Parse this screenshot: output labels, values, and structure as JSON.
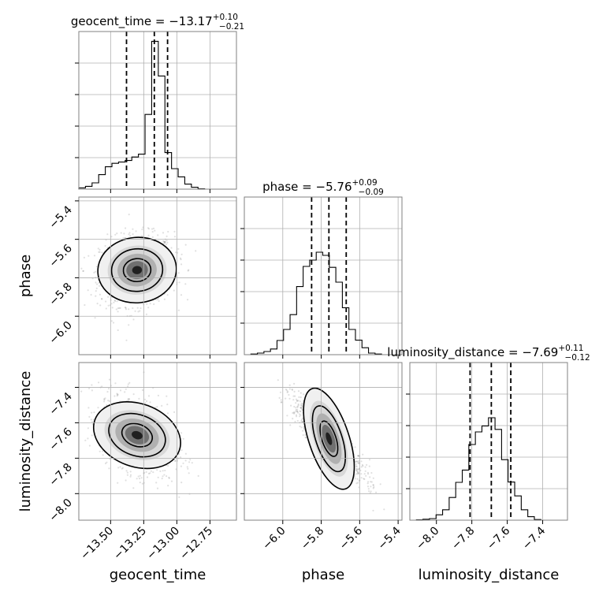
{
  "chart_data": {
    "type": "corner",
    "parameters": [
      "geocent_time",
      "phase",
      "luminosity_distance"
    ],
    "titles": [
      {
        "param": "geocent_time",
        "prefix": "geocent_time = ",
        "median": "−13.17",
        "upper": "+0.10",
        "lower": "−0.21"
      },
      {
        "param": "phase",
        "prefix": "phase = ",
        "median": "−5.76",
        "upper": "+0.09",
        "lower": "−0.09"
      },
      {
        "param": "luminosity_distance",
        "prefix": "luminosity_distance = ",
        "median": "−7.69",
        "upper": "+0.11",
        "lower": "−0.12"
      }
    ],
    "ranges": {
      "geocent_time": [
        -13.74,
        -12.55
      ],
      "phase": [
        -6.2,
        -5.38
      ],
      "luminosity_distance": [
        -8.15,
        -7.26
      ]
    },
    "ticks": {
      "geocent_time": [
        -13.5,
        -13.25,
        -13.0,
        -12.75
      ],
      "phase": [
        -6.0,
        -5.8,
        -5.6,
        -5.4
      ],
      "luminosity_distance": [
        -8.0,
        -7.8,
        -7.6,
        -7.4
      ]
    },
    "tick_labels": {
      "geocent_time": [
        "−13.50",
        "−13.25",
        "−13.00",
        "−12.75"
      ],
      "phase": [
        "−6.0",
        "−5.8",
        "−5.6",
        "−5.4"
      ],
      "luminosity_distance": [
        "−8.0",
        "−7.8",
        "−7.6",
        "−7.4"
      ]
    },
    "quantiles": {
      "geocent_time": [
        -13.38,
        -13.17,
        -13.07
      ],
      "phase": [
        -5.85,
        -5.76,
        -5.67
      ],
      "luminosity_distance": [
        -7.81,
        -7.69,
        -7.58
      ]
    },
    "histograms": {
      "geocent_time": {
        "edges": [
          -13.74,
          -13.69,
          -13.64,
          -13.59,
          -13.54,
          -13.49,
          -13.44,
          -13.39,
          -13.34,
          -13.29,
          -13.24,
          -13.19,
          -13.14,
          -13.09,
          -13.04,
          -12.99,
          -12.94,
          -12.89,
          -12.84,
          -12.79,
          -12.74,
          -12.69,
          -12.64,
          -12.59,
          -12.55
        ],
        "counts": [
          0.4,
          0.9,
          2.0,
          4.6,
          7.1,
          8.2,
          8.6,
          9.1,
          10.2,
          11.1,
          23.7,
          46.9,
          35.9,
          11.6,
          6.5,
          3.9,
          1.6,
          0.6,
          0.1,
          0,
          0,
          0,
          0,
          0
        ]
      },
      "phase": {
        "edges": [
          -6.2,
          -6.166,
          -6.132,
          -6.098,
          -6.064,
          -6.03,
          -5.996,
          -5.962,
          -5.928,
          -5.894,
          -5.86,
          -5.826,
          -5.792,
          -5.758,
          -5.724,
          -5.69,
          -5.656,
          -5.622,
          -5.588,
          -5.554,
          -5.52,
          -5.486,
          -5.452,
          -5.418,
          -5.38
        ],
        "counts": [
          0,
          0.2,
          0.5,
          1.0,
          1.8,
          4.5,
          8.0,
          12.7,
          21.6,
          28.0,
          30.0,
          32.5,
          31.5,
          27.7,
          23.0,
          14.9,
          8.0,
          4.6,
          2.2,
          0.5,
          0.2,
          0,
          0,
          0
        ]
      },
      "luminosity_distance": {
        "edges": [
          -8.15,
          -8.113,
          -8.076,
          -8.039,
          -8.002,
          -7.965,
          -7.928,
          -7.891,
          -7.854,
          -7.817,
          -7.78,
          -7.743,
          -7.706,
          -7.669,
          -7.632,
          -7.595,
          -7.558,
          -7.521,
          -7.484,
          -7.447,
          -7.41,
          -7.373,
          -7.336,
          -7.299,
          -7.26
        ],
        "counts": [
          0,
          0.1,
          0.3,
          0.5,
          1.7,
          3.3,
          7.2,
          12.0,
          15.9,
          24.0,
          28.0,
          29.9,
          32.5,
          28.8,
          19.2,
          12.1,
          7.7,
          3.3,
          1.1,
          0.2,
          0,
          0,
          0,
          0
        ]
      }
    },
    "pairs": [
      {
        "x": "geocent_time",
        "y": "phase",
        "mean": [
          -13.3,
          -5.76
        ],
        "sd": [
          0.14,
          0.09
        ],
        "rho": 0.1
      },
      {
        "x": "geocent_time",
        "y": "luminosity_distance",
        "mean": [
          -13.3,
          -7.67
        ],
        "sd": [
          0.14,
          0.11
        ],
        "rho": -0.35
      },
      {
        "x": "phase",
        "y": "luminosity_distance",
        "mean": [
          -5.76,
          -7.69
        ],
        "sd": [
          0.09,
          0.11
        ],
        "rho": -0.88
      }
    ],
    "grid": true
  }
}
